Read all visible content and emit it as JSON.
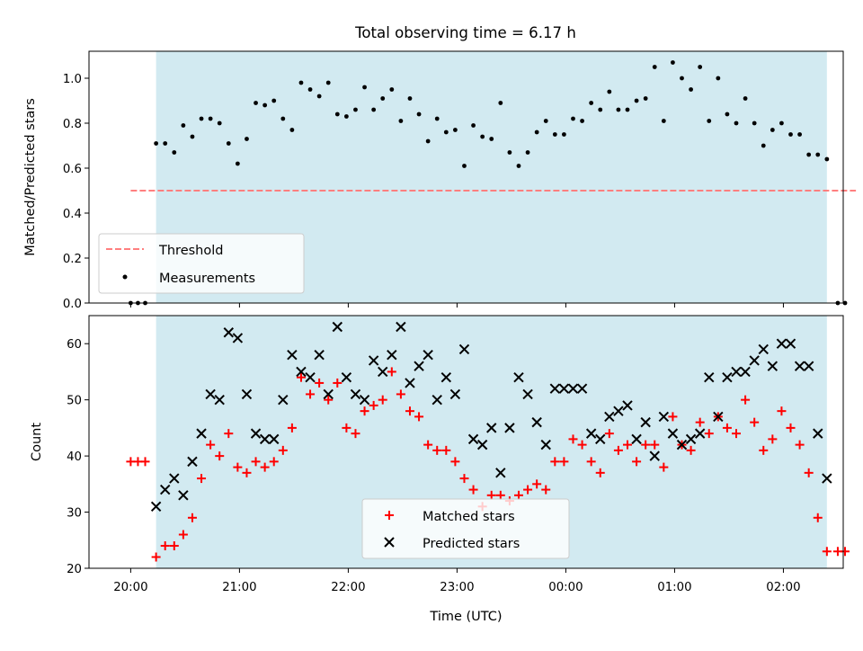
{
  "title": "Total observing time = 6.17 h",
  "colors": {
    "shade": "#add8e6",
    "threshold": "#ff7f7f",
    "measurements": "#000000",
    "matched": "#ff0000",
    "predicted": "#000000"
  },
  "chart_data": [
    {
      "type": "scatter",
      "ylabel": "Matched/Predicted stars",
      "ylim": [
        0,
        1.12
      ],
      "yticks": [
        "0.0",
        "0.2",
        "0.4",
        "0.6",
        "0.8",
        "1.0"
      ],
      "xlim": [
        "19:37",
        "26:33"
      ],
      "observing_window": [
        "20:14",
        "26:24"
      ],
      "legend_position": "lower left",
      "threshold": {
        "name": "Threshold",
        "value": 0.5,
        "x": [
          "20:00",
          "26:40"
        ]
      },
      "series": [
        {
          "name": "Measurements",
          "x": [
            "20:00",
            "20:04",
            "20:08",
            "20:14",
            "20:19",
            "20:24",
            "20:29",
            "20:34",
            "20:39",
            "20:44",
            "20:49",
            "20:54",
            "20:59",
            "21:04",
            "21:09",
            "21:14",
            "21:19",
            "21:24",
            "21:29",
            "21:34",
            "21:39",
            "21:44",
            "21:49",
            "21:54",
            "21:59",
            "22:04",
            "22:09",
            "22:14",
            "22:19",
            "22:24",
            "22:29",
            "22:34",
            "22:39",
            "22:44",
            "22:49",
            "22:54",
            "22:59",
            "23:04",
            "23:09",
            "23:14",
            "23:19",
            "23:24",
            "23:29",
            "23:34",
            "23:39",
            "23:44",
            "23:49",
            "23:54",
            "23:59",
            "24:04",
            "24:09",
            "24:14",
            "24:19",
            "24:24",
            "24:29",
            "24:34",
            "24:39",
            "24:44",
            "24:49",
            "24:54",
            "24:59",
            "25:04",
            "25:09",
            "25:14",
            "25:19",
            "25:24",
            "25:29",
            "25:34",
            "25:39",
            "25:44",
            "25:49",
            "25:54",
            "25:59",
            "26:04",
            "26:09",
            "26:14",
            "26:19",
            "26:24",
            "26:30",
            "26:34"
          ],
          "y": [
            0.0,
            0.0,
            0.0,
            0.71,
            0.71,
            0.67,
            0.79,
            0.74,
            0.82,
            0.82,
            0.8,
            0.71,
            0.62,
            0.73,
            0.89,
            0.88,
            0.9,
            0.82,
            0.77,
            0.98,
            0.95,
            0.92,
            0.98,
            0.84,
            0.83,
            0.86,
            0.96,
            0.86,
            0.91,
            0.95,
            0.81,
            0.91,
            0.84,
            0.72,
            0.82,
            0.76,
            0.77,
            0.61,
            0.79,
            0.74,
            0.73,
            0.89,
            0.67,
            0.61,
            0.67,
            0.76,
            0.81,
            0.75,
            0.75,
            0.82,
            0.81,
            0.89,
            0.86,
            0.94,
            0.86,
            0.86,
            0.9,
            0.91,
            1.05,
            0.81,
            1.07,
            1.0,
            0.95,
            1.05,
            0.81,
            1.0,
            0.84,
            0.8,
            0.91,
            0.8,
            0.7,
            0.77,
            0.8,
            0.75,
            0.75,
            0.66,
            0.66,
            0.64,
            0.0,
            0.0
          ]
        }
      ]
    },
    {
      "type": "scatter",
      "xlabel": "Time (UTC)",
      "ylabel": "Count",
      "ylim": [
        20,
        65
      ],
      "yticks": [
        "20",
        "30",
        "40",
        "50",
        "60"
      ],
      "xlim": [
        "19:37",
        "26:33"
      ],
      "xticks": [
        "20:00",
        "21:00",
        "22:00",
        "23:00",
        "00:00",
        "01:00",
        "02:00"
      ],
      "observing_window": [
        "20:14",
        "26:24"
      ],
      "legend_position": "lower center",
      "series": [
        {
          "name": "Matched stars",
          "marker": "plus",
          "x": [
            "20:00",
            "20:04",
            "20:08",
            "20:14",
            "20:19",
            "20:24",
            "20:29",
            "20:34",
            "20:39",
            "20:44",
            "20:49",
            "20:54",
            "20:59",
            "21:04",
            "21:09",
            "21:14",
            "21:19",
            "21:24",
            "21:29",
            "21:34",
            "21:39",
            "21:44",
            "21:49",
            "21:54",
            "21:59",
            "22:04",
            "22:09",
            "22:14",
            "22:19",
            "22:24",
            "22:29",
            "22:34",
            "22:39",
            "22:44",
            "22:49",
            "22:54",
            "22:59",
            "23:04",
            "23:09",
            "23:14",
            "23:19",
            "23:24",
            "23:29",
            "23:34",
            "23:39",
            "23:44",
            "23:49",
            "23:54",
            "23:59",
            "24:04",
            "24:09",
            "24:14",
            "24:19",
            "24:24",
            "24:29",
            "24:34",
            "24:39",
            "24:44",
            "24:49",
            "24:54",
            "24:59",
            "25:04",
            "25:09",
            "25:14",
            "25:19",
            "25:24",
            "25:29",
            "25:34",
            "25:39",
            "25:44",
            "25:49",
            "25:54",
            "25:59",
            "26:04",
            "26:09",
            "26:14",
            "26:19",
            "26:24",
            "26:30",
            "26:34"
          ],
          "y": [
            39,
            39,
            39,
            22,
            24,
            24,
            26,
            29,
            36,
            42,
            40,
            44,
            38,
            37,
            39,
            38,
            39,
            41,
            45,
            54,
            51,
            53,
            50,
            53,
            45,
            44,
            48,
            49,
            50,
            55,
            51,
            48,
            47,
            42,
            41,
            41,
            39,
            36,
            34,
            31,
            33,
            33,
            32,
            33,
            34,
            35,
            34,
            39,
            39,
            43,
            42,
            39,
            37,
            44,
            41,
            42,
            39,
            42,
            42,
            38,
            47,
            42,
            41,
            46,
            44,
            47,
            45,
            44,
            50,
            46,
            41,
            43,
            48,
            45,
            42,
            37,
            29,
            23,
            23,
            23
          ]
        },
        {
          "name": "Predicted stars",
          "marker": "x",
          "x": [
            "20:14",
            "20:19",
            "20:24",
            "20:29",
            "20:34",
            "20:39",
            "20:44",
            "20:49",
            "20:54",
            "20:59",
            "21:04",
            "21:09",
            "21:14",
            "21:19",
            "21:24",
            "21:29",
            "21:34",
            "21:39",
            "21:44",
            "21:49",
            "21:54",
            "21:59",
            "22:04",
            "22:09",
            "22:14",
            "22:19",
            "22:24",
            "22:29",
            "22:34",
            "22:39",
            "22:44",
            "22:49",
            "22:54",
            "22:59",
            "23:04",
            "23:09",
            "23:14",
            "23:19",
            "23:24",
            "23:29",
            "23:34",
            "23:39",
            "23:44",
            "23:49",
            "23:54",
            "23:59",
            "24:04",
            "24:09",
            "24:14",
            "24:19",
            "24:24",
            "24:29",
            "24:34",
            "24:39",
            "24:44",
            "24:49",
            "24:54",
            "24:59",
            "25:04",
            "25:09",
            "25:14",
            "25:19",
            "25:24",
            "25:29",
            "25:34",
            "25:39",
            "25:44",
            "25:49",
            "25:54",
            "25:59",
            "26:04",
            "26:09",
            "26:14",
            "26:19",
            "26:24"
          ],
          "y": [
            31,
            34,
            36,
            33,
            39,
            44,
            51,
            50,
            62,
            61,
            51,
            44,
            43,
            43,
            50,
            58,
            55,
            54,
            58,
            51,
            63,
            54,
            51,
            50,
            57,
            55,
            58,
            63,
            53,
            56,
            58,
            50,
            54,
            51,
            59,
            43,
            42,
            45,
            37,
            45,
            54,
            51,
            46,
            42,
            52,
            52,
            52,
            52,
            44,
            43,
            47,
            48,
            49,
            43,
            46,
            40,
            47,
            44,
            42,
            43,
            44,
            54,
            47,
            54,
            55,
            55,
            57,
            59,
            56,
            60,
            60,
            56,
            56,
            44,
            36
          ]
        }
      ]
    }
  ]
}
